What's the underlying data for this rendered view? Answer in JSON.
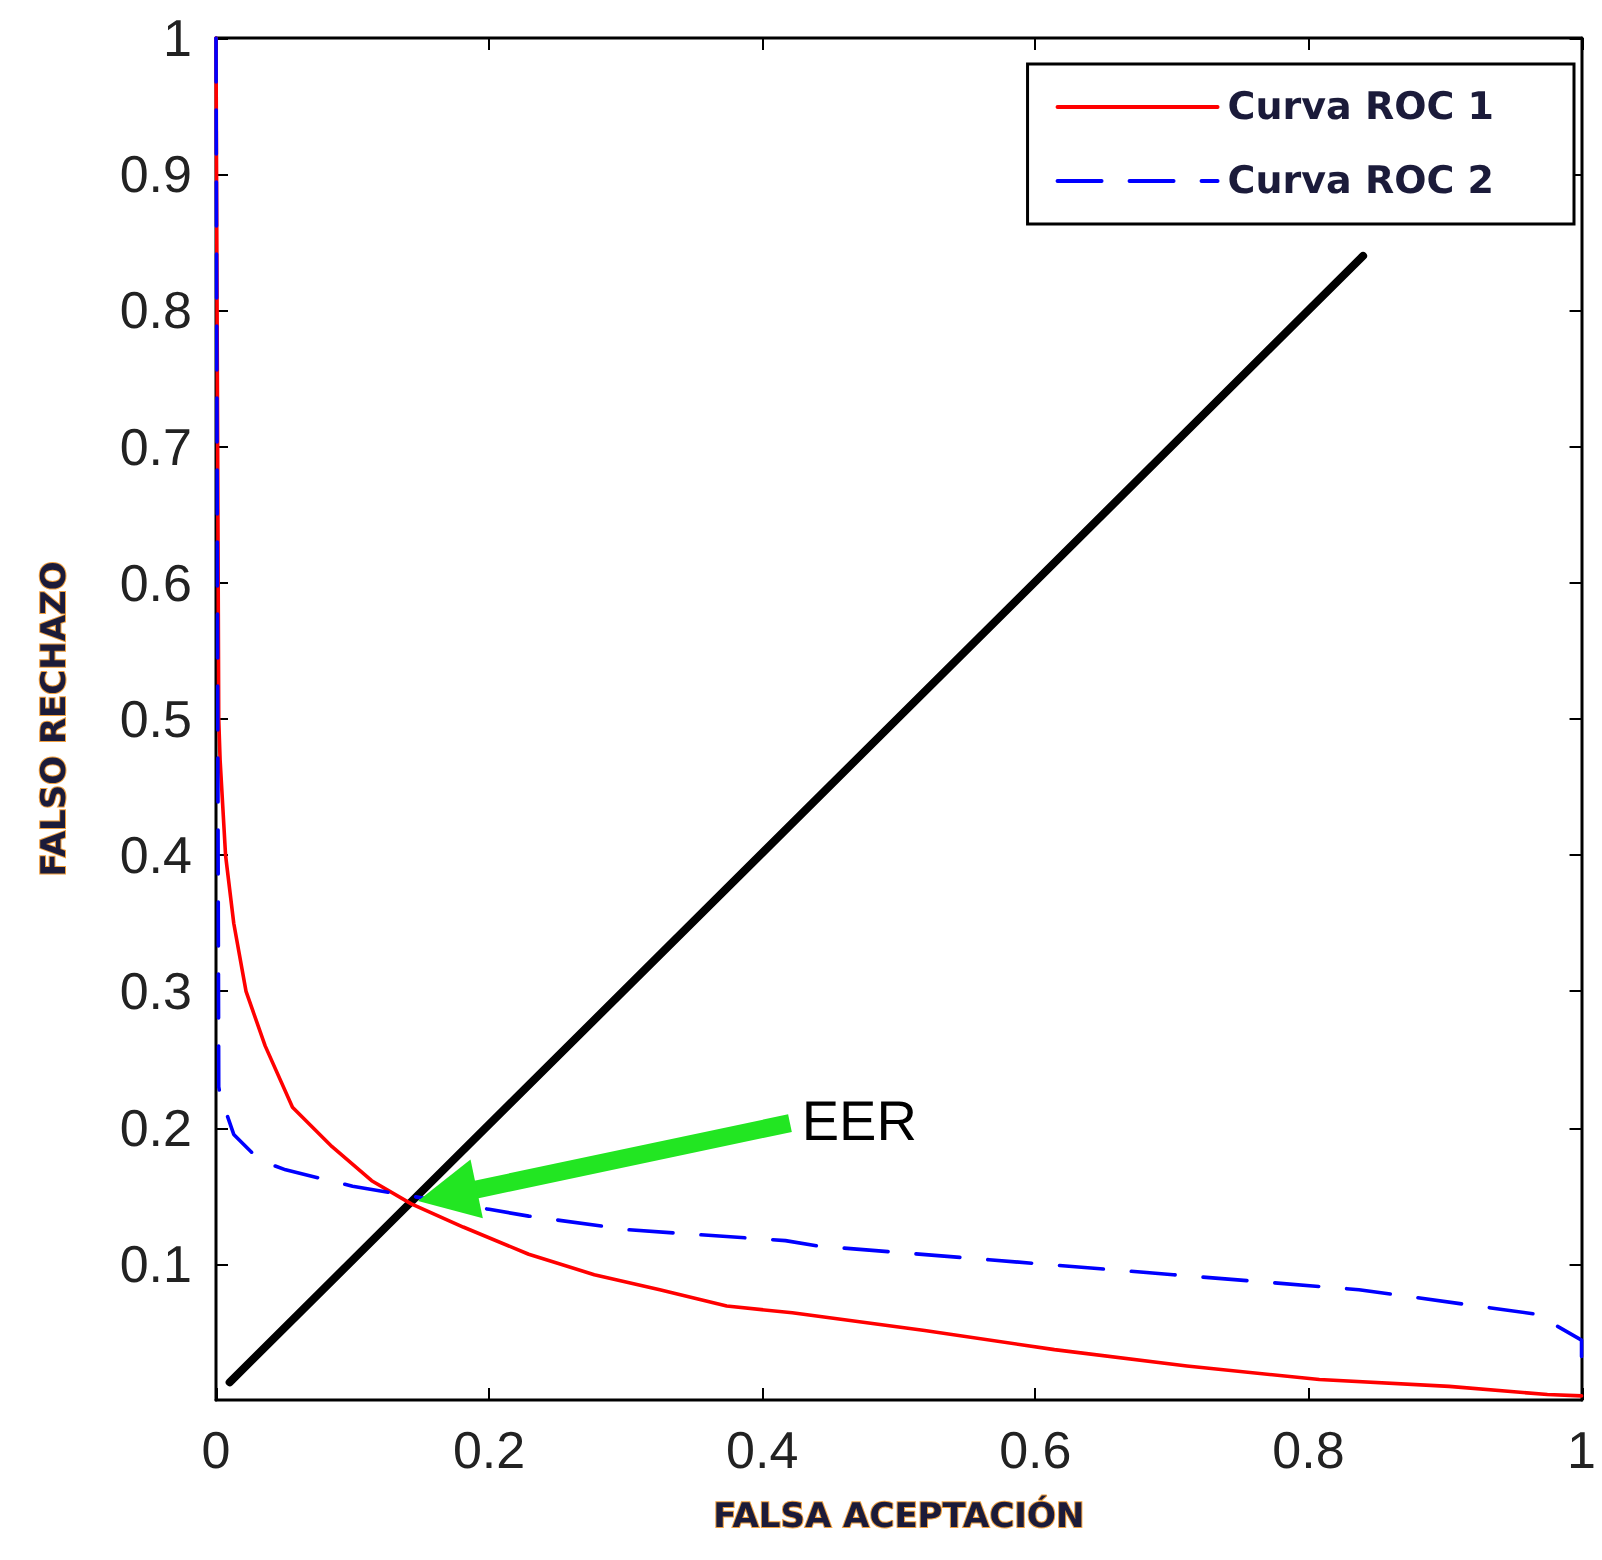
{
  "chart_data": {
    "type": "line",
    "xlabel": "FALSA ACEPTACIÓN",
    "ylabel": "FALSO RECHAZO",
    "xlim": [
      0,
      1
    ],
    "ylim": [
      0,
      1
    ],
    "xticks": [
      0,
      0.2,
      0.4,
      0.6,
      0.8,
      1
    ],
    "yticks": [
      0.1,
      0.2,
      0.3,
      0.4,
      0.5,
      0.6,
      0.7,
      0.8,
      0.9,
      1
    ],
    "grid": false,
    "legend": "top right",
    "marker": "none",
    "annotations": [
      "EER"
    ],
    "series": [
      {
        "name": "Curva ROC 1",
        "color": "#ff0000",
        "line_style": "solid",
        "x": [
          0,
          0.002,
          0.003,
          0.007,
          0.013,
          0.022,
          0.036,
          0.056,
          0.085,
          0.114,
          0.143,
          0.181,
          0.229,
          0.277,
          0.325,
          0.374,
          0.422,
          0.519,
          0.614,
          0.711,
          0.808,
          0.903,
          0.975,
          1
        ],
        "values": [
          1,
          0.5,
          0.47,
          0.4,
          0.35,
          0.3,
          0.26,
          0.215,
          0.186,
          0.161,
          0.144,
          0.127,
          0.107,
          0.092,
          0.081,
          0.069,
          0.064,
          0.051,
          0.037,
          0.025,
          0.015,
          0.01,
          0.004,
          0.003
        ]
      },
      {
        "name": "Curva ROC 2",
        "color": "#0000ff",
        "line_style": "dashed",
        "x": [
          0,
          0.002,
          0.003,
          0.013,
          0.032,
          0.051,
          0.1,
          0.2,
          0.229,
          0.302,
          0.417,
          0.441,
          0.566,
          0.701,
          0.837,
          0.967,
          1,
          1
        ],
        "values": [
          1,
          0.23,
          0.224,
          0.195,
          0.176,
          0.169,
          0.157,
          0.14,
          0.135,
          0.125,
          0.117,
          0.113,
          0.103,
          0.092,
          0.081,
          0.063,
          0.044,
          0.03
        ]
      },
      {
        "color": "#000000",
        "line_style": "solid",
        "x": [
          0.01,
          0.84
        ],
        "values": [
          0.013,
          0.84
        ]
      }
    ]
  }
}
